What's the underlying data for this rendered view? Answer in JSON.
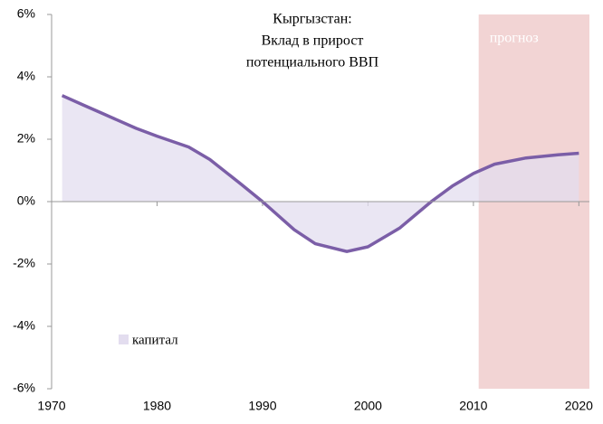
{
  "chart_data": {
    "type": "area",
    "title": [
      "Кыргызстан:",
      "Вклад в прирост",
      "потенциального ВВП"
    ],
    "x": [
      1971,
      1973,
      1975,
      1978,
      1980,
      1983,
      1985,
      1988,
      1990,
      1993,
      1995,
      1998,
      2000,
      2003,
      2006,
      2008,
      2010,
      2012,
      2015,
      2018,
      2020
    ],
    "series": [
      {
        "name": "капитал",
        "color": "#7b5ea7",
        "fill": "#e3ddef",
        "values": [
          3.4,
          3.1,
          2.8,
          2.35,
          2.1,
          1.75,
          1.35,
          0.55,
          0.0,
          -0.9,
          -1.35,
          -1.6,
          -1.45,
          -0.85,
          0.0,
          0.5,
          0.9,
          1.2,
          1.4,
          1.5,
          1.55
        ]
      }
    ],
    "xlim": [
      1970,
      2021
    ],
    "xticks": [
      1970,
      1980,
      1990,
      2000,
      2010,
      2020
    ],
    "ylim": [
      -6,
      6
    ],
    "yticks": [
      {
        "value": -6,
        "label": "-6%"
      },
      {
        "value": -4,
        "label": "-4%"
      },
      {
        "value": -2,
        "label": "-2%"
      },
      {
        "value": 0,
        "label": "0%"
      },
      {
        "value": 2,
        "label": "2%"
      },
      {
        "value": 4,
        "label": "4%"
      },
      {
        "value": 6,
        "label": "6%"
      }
    ],
    "shaded_region": {
      "label": "прогноз",
      "x": [
        2010.5,
        2021
      ],
      "color": "#f2d4d4"
    }
  }
}
